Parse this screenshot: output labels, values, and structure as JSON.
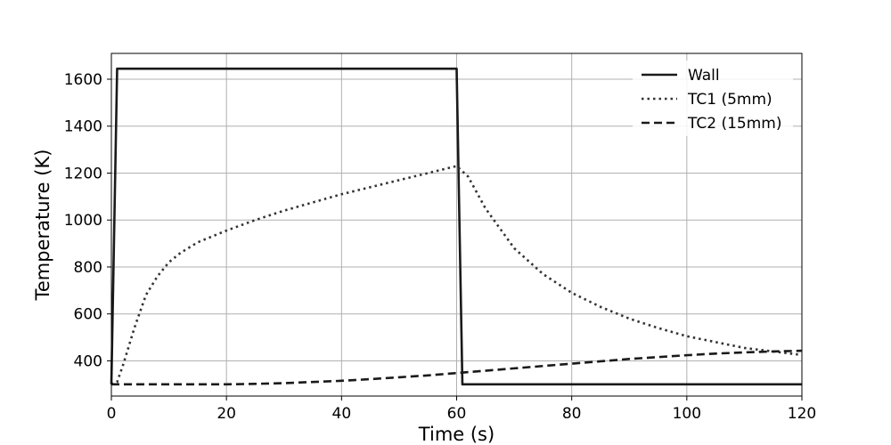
{
  "chart_data": {
    "type": "line",
    "title": "",
    "xlabel": "Time (s)",
    "ylabel": "Temperature (K)",
    "xlim": [
      0,
      120
    ],
    "ylim": [
      250,
      1710
    ],
    "xticks": [
      0,
      20,
      40,
      60,
      80,
      100,
      120
    ],
    "yticks": [
      400,
      600,
      800,
      1000,
      1200,
      1400,
      1600
    ],
    "grid": true,
    "legend_position": "top-right",
    "series": [
      {
        "name": "Wall",
        "style": "solid",
        "color": "#1a1a1a",
        "x": [
          0,
          1,
          60,
          61,
          120
        ],
        "y": [
          300,
          1645,
          1645,
          300,
          300
        ]
      },
      {
        "name": "TC1 (5mm)",
        "style": "dotted",
        "color": "#333333",
        "x": [
          0,
          1,
          2,
          4,
          6,
          8,
          10,
          12,
          15,
          20,
          25,
          30,
          35,
          40,
          45,
          50,
          55,
          60,
          62,
          65,
          70,
          75,
          80,
          85,
          90,
          95,
          100,
          105,
          110,
          115,
          120
        ],
        "y": [
          300,
          310,
          380,
          540,
          680,
          760,
          820,
          860,
          905,
          955,
          1000,
          1040,
          1075,
          1110,
          1140,
          1170,
          1200,
          1230,
          1185,
          1050,
          880,
          770,
          690,
          630,
          580,
          540,
          505,
          480,
          455,
          440,
          425
        ]
      },
      {
        "name": "TC2 (15mm)",
        "style": "dashed",
        "color": "#1a1a1a",
        "x": [
          0,
          10,
          20,
          25,
          30,
          35,
          40,
          45,
          50,
          55,
          60,
          65,
          70,
          75,
          80,
          85,
          90,
          95,
          100,
          105,
          110,
          115,
          120
        ],
        "y": [
          300,
          300,
          300,
          302,
          305,
          310,
          315,
          322,
          330,
          338,
          348,
          358,
          368,
          378,
          388,
          398,
          408,
          416,
          424,
          431,
          436,
          440,
          443
        ]
      }
    ]
  }
}
